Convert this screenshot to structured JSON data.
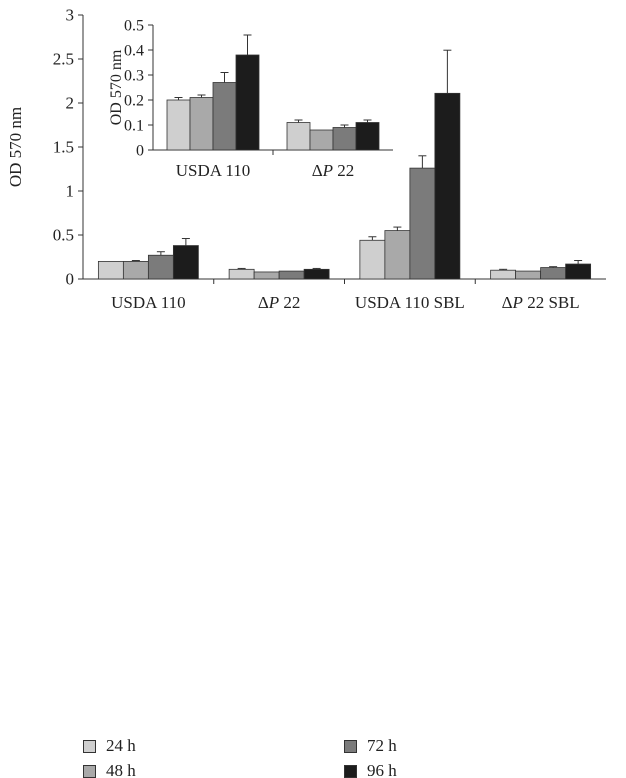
{
  "chart_data": [
    {
      "type": "bar",
      "title": "",
      "xlabel": "",
      "ylabel": "OD 570 nm",
      "ylim": [
        0,
        3
      ],
      "yticks": [
        "0",
        "0.5",
        "1",
        "1.5",
        "2",
        "2.5",
        "3"
      ],
      "categories": [
        "USDA 110",
        "ΔP 22",
        "USDA 110 SBL",
        "ΔP 22 SBL"
      ],
      "series": [
        {
          "name": "24 h",
          "color": "#cfcfcf",
          "values": [
            0.2,
            0.11,
            0.44,
            0.1
          ],
          "errors": [
            0.0,
            0.01,
            0.04,
            0.01
          ]
        },
        {
          "name": "48 h",
          "color": "#a9a9a9",
          "values": [
            0.2,
            0.08,
            0.55,
            0.09
          ],
          "errors": [
            0.01,
            0.0,
            0.04,
            0.0
          ]
        },
        {
          "name": "72 h",
          "color": "#7b7b7b",
          "values": [
            0.27,
            0.09,
            1.26,
            0.13
          ],
          "errors": [
            0.04,
            0.0,
            0.14,
            0.01
          ]
        },
        {
          "name": "96 h",
          "color": "#1c1c1c",
          "values": [
            0.38,
            0.11,
            2.11,
            0.17
          ],
          "errors": [
            0.08,
            0.01,
            0.49,
            0.04
          ]
        }
      ],
      "grid": false
    },
    {
      "type": "bar",
      "title": "",
      "xlabel": "",
      "ylabel": "OD 570 nm",
      "ylim": [
        0,
        0.5
      ],
      "yticks": [
        "0",
        "0.1",
        "0.2",
        "0.3",
        "0.4",
        "0.5"
      ],
      "categories": [
        "USDA 110",
        "ΔP 22"
      ],
      "series": [
        {
          "name": "24 h",
          "color": "#cfcfcf",
          "values": [
            0.2,
            0.11
          ],
          "errors": [
            0.01,
            0.01
          ]
        },
        {
          "name": "48 h",
          "color": "#a9a9a9",
          "values": [
            0.21,
            0.08
          ],
          "errors": [
            0.01,
            0.0
          ]
        },
        {
          "name": "72 h",
          "color": "#7b7b7b",
          "values": [
            0.27,
            0.09
          ],
          "errors": [
            0.04,
            0.01
          ]
        },
        {
          "name": "96 h",
          "color": "#1c1c1c",
          "values": [
            0.38,
            0.11
          ],
          "errors": [
            0.08,
            0.01
          ]
        }
      ],
      "grid": false
    }
  ],
  "legend": {
    "placement": "bottom",
    "items": [
      {
        "label": "24 h",
        "color": "#cfcfcf"
      },
      {
        "label": "48 h",
        "color": "#a9a9a9"
      },
      {
        "label": "72 h",
        "color": "#7b7b7b"
      },
      {
        "label": "96 h",
        "color": "#1c1c1c"
      }
    ]
  }
}
